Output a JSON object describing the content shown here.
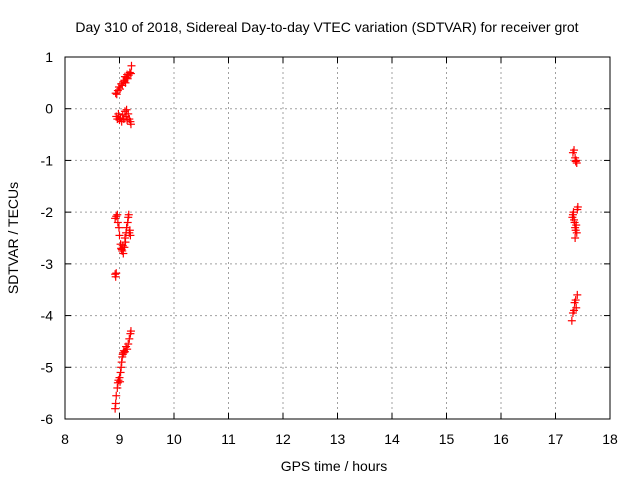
{
  "chart_data": {
    "type": "scatter",
    "title": "Day 310 of 2018, Sidereal Day-to-day VTEC variation (SDTVAR) for receiver grot",
    "xlabel": "GPS time / hours",
    "ylabel": "SDTVAR / TECUs",
    "xlim": [
      8,
      18
    ],
    "ylim": [
      -6,
      1
    ],
    "xticks": [
      "8",
      "9",
      "10",
      "11",
      "12",
      "13",
      "14",
      "15",
      "16",
      "17",
      "18"
    ],
    "yticks": [
      "1",
      "0",
      "-1",
      "-2",
      "-3",
      "-4",
      "-5",
      "-6"
    ],
    "grid": true,
    "marker": "+",
    "series": [
      {
        "name": "SDTVAR",
        "color": "#ff0000",
        "points": [
          [
            8.93,
            0.3
          ],
          [
            8.95,
            0.28
          ],
          [
            8.97,
            0.35
          ],
          [
            8.99,
            0.42
          ],
          [
            9.01,
            0.38
          ],
          [
            9.03,
            0.48
          ],
          [
            9.05,
            0.45
          ],
          [
            9.07,
            0.52
          ],
          [
            9.09,
            0.55
          ],
          [
            9.11,
            0.5
          ],
          [
            9.13,
            0.6
          ],
          [
            9.15,
            0.58
          ],
          [
            9.17,
            0.65
          ],
          [
            9.19,
            0.7
          ],
          [
            9.21,
            0.68
          ],
          [
            9.22,
            0.83
          ],
          [
            9.1,
            0.62
          ],
          [
            9.14,
            0.66
          ],
          [
            8.94,
            -0.15
          ],
          [
            8.96,
            -0.2
          ],
          [
            8.98,
            -0.1
          ],
          [
            9.0,
            -0.22
          ],
          [
            9.02,
            -0.18
          ],
          [
            9.04,
            -0.25
          ],
          [
            9.06,
            -0.12
          ],
          [
            9.08,
            -0.2
          ],
          [
            9.1,
            -0.05
          ],
          [
            9.12,
            -0.15
          ],
          [
            9.14,
            -0.22
          ],
          [
            9.16,
            -0.1
          ],
          [
            9.18,
            -0.2
          ],
          [
            9.2,
            -0.25
          ],
          [
            9.21,
            -0.3
          ],
          [
            9.13,
            -0.02
          ],
          [
            8.92,
            -2.12
          ],
          [
            8.94,
            -2.08
          ],
          [
            8.96,
            -2.05
          ],
          [
            8.97,
            -2.2
          ],
          [
            8.99,
            -2.3
          ],
          [
            9.0,
            -2.45
          ],
          [
            9.02,
            -2.62
          ],
          [
            9.03,
            -2.7
          ],
          [
            9.05,
            -2.75
          ],
          [
            9.06,
            -2.65
          ],
          [
            9.07,
            -2.8
          ],
          [
            9.09,
            -2.68
          ],
          [
            9.1,
            -2.5
          ],
          [
            9.12,
            -2.4
          ],
          [
            9.13,
            -2.3
          ],
          [
            9.15,
            -2.2
          ],
          [
            9.16,
            -2.1
          ],
          [
            9.17,
            -2.05
          ],
          [
            9.18,
            -2.4
          ],
          [
            9.2,
            -2.45
          ],
          [
            9.19,
            -2.35
          ],
          [
            9.11,
            -2.58
          ],
          [
            9.04,
            -2.72
          ],
          [
            8.92,
            -3.2
          ],
          [
            8.94,
            -3.18
          ],
          [
            8.93,
            -3.25
          ],
          [
            8.92,
            -5.8
          ],
          [
            8.93,
            -5.7
          ],
          [
            8.94,
            -5.55
          ],
          [
            8.96,
            -5.4
          ],
          [
            8.97,
            -5.3
          ],
          [
            8.98,
            -5.25
          ],
          [
            9.0,
            -5.2
          ],
          [
            9.01,
            -5.28
          ],
          [
            9.02,
            -5.1
          ],
          [
            9.03,
            -5.0
          ],
          [
            9.04,
            -4.9
          ],
          [
            9.05,
            -4.8
          ],
          [
            9.06,
            -4.75
          ],
          [
            9.07,
            -4.72
          ],
          [
            9.08,
            -4.68
          ],
          [
            9.1,
            -4.7
          ],
          [
            9.12,
            -4.6
          ],
          [
            9.14,
            -4.65
          ],
          [
            9.16,
            -4.55
          ],
          [
            9.18,
            -4.45
          ],
          [
            9.2,
            -4.35
          ],
          [
            9.21,
            -4.3
          ],
          [
            17.32,
            -0.85
          ],
          [
            17.34,
            -0.8
          ],
          [
            17.36,
            -0.95
          ],
          [
            17.38,
            -1.0
          ],
          [
            17.39,
            -1.05
          ],
          [
            17.37,
            -1.02
          ],
          [
            17.31,
            -2.1
          ],
          [
            17.32,
            -2.05
          ],
          [
            17.33,
            -2.0
          ],
          [
            17.34,
            -2.15
          ],
          [
            17.35,
            -2.2
          ],
          [
            17.36,
            -2.3
          ],
          [
            17.37,
            -2.35
          ],
          [
            17.38,
            -2.25
          ],
          [
            17.39,
            -2.4
          ],
          [
            17.4,
            -1.95
          ],
          [
            17.41,
            -1.9
          ],
          [
            17.36,
            -2.5
          ],
          [
            17.3,
            -4.1
          ],
          [
            17.32,
            -3.95
          ],
          [
            17.34,
            -3.9
          ],
          [
            17.35,
            -3.75
          ],
          [
            17.37,
            -3.7
          ],
          [
            17.38,
            -3.85
          ],
          [
            17.4,
            -3.6
          ]
        ]
      }
    ]
  }
}
